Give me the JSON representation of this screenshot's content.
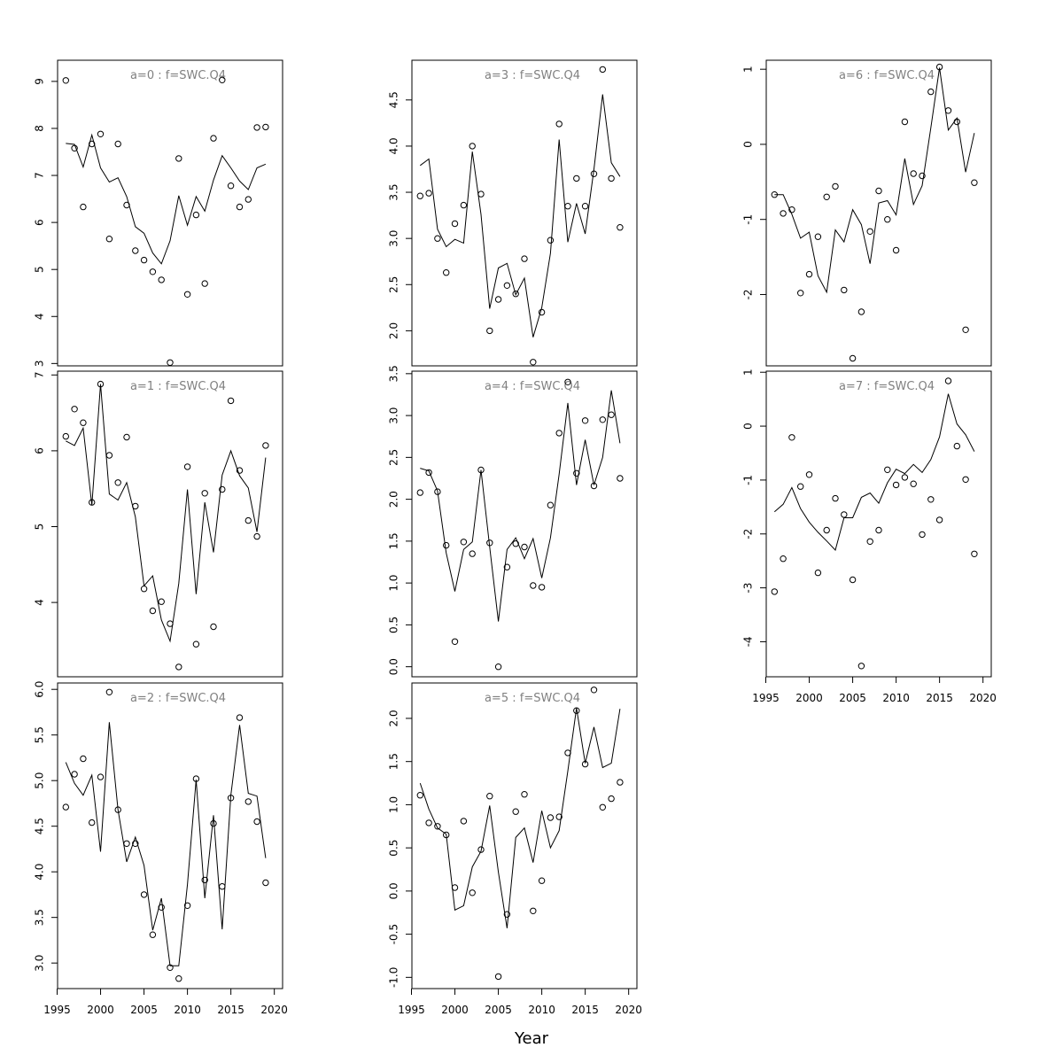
{
  "figure": {
    "xlabel": "Year"
  },
  "chart_data": [
    {
      "type": "line",
      "title": "a=0 : f=SWC.Q4",
      "x": [
        1996,
        1997,
        1998,
        1999,
        2000,
        2001,
        2002,
        2003,
        2004,
        2005,
        2006,
        2007,
        2008,
        2009,
        2010,
        2011,
        2012,
        2013,
        2014,
        2015,
        2016,
        2017,
        2018,
        2019
      ],
      "observed": [
        9.02,
        7.58,
        6.33,
        7.67,
        7.88,
        5.65,
        7.67,
        6.37,
        5.4,
        5.2,
        4.95,
        4.78,
        3.02,
        7.36,
        4.47,
        6.16,
        4.7,
        7.79,
        9.03,
        6.78,
        6.33,
        6.49,
        8.02,
        8.03
      ],
      "fitted": [
        7.68,
        7.66,
        7.18,
        7.86,
        7.16,
        6.86,
        6.95,
        6.55,
        5.91,
        5.77,
        5.35,
        5.12,
        5.61,
        6.57,
        5.94,
        6.55,
        6.24,
        6.9,
        7.42,
        7.16,
        6.88,
        6.7,
        7.16,
        7.24
      ],
      "ylim": [
        2.95,
        9.45
      ],
      "yticks": [
        3,
        4,
        5,
        6,
        7,
        8,
        9
      ],
      "ytick_labels": [
        "3",
        "4",
        "5",
        "6",
        "7",
        "8",
        "9"
      ],
      "xticks": [],
      "xtick_labels": []
    },
    {
      "type": "line",
      "title": "a=1 : f=SWC.Q4",
      "x": [
        1996,
        1997,
        1998,
        1999,
        2000,
        2001,
        2002,
        2003,
        2004,
        2005,
        2006,
        2007,
        2008,
        2009,
        2010,
        2011,
        2012,
        2013,
        2014,
        2015,
        2016,
        2017,
        2018,
        2019
      ],
      "observed": [
        6.19,
        6.55,
        6.37,
        5.32,
        6.88,
        5.94,
        5.58,
        6.18,
        5.27,
        4.18,
        3.89,
        4.01,
        3.72,
        3.15,
        5.79,
        3.45,
        5.44,
        3.68,
        5.49,
        6.66,
        5.74,
        5.08,
        4.87,
        6.07
      ],
      "fitted": [
        6.13,
        6.07,
        6.3,
        5.28,
        6.88,
        5.43,
        5.35,
        5.58,
        5.13,
        4.22,
        4.35,
        3.77,
        3.49,
        4.25,
        5.49,
        4.11,
        5.32,
        4.66,
        5.68,
        6.0,
        5.67,
        5.51,
        4.93,
        5.91
      ],
      "ylim": [
        3.02,
        7.05
      ],
      "yticks": [
        4,
        5,
        6,
        7
      ],
      "ytick_labels": [
        "4",
        "5",
        "6",
        "7"
      ],
      "xticks": [],
      "xtick_labels": []
    },
    {
      "type": "line",
      "title": "a=2 : f=SWC.Q4",
      "x": [
        1996,
        1997,
        1998,
        1999,
        2000,
        2001,
        2002,
        2003,
        2004,
        2005,
        2006,
        2007,
        2008,
        2009,
        2010,
        2011,
        2012,
        2013,
        2014,
        2015,
        2016,
        2017,
        2018,
        2019
      ],
      "observed": [
        4.71,
        5.07,
        5.24,
        4.54,
        5.04,
        5.97,
        4.68,
        4.31,
        4.31,
        3.75,
        3.31,
        3.61,
        2.95,
        2.83,
        3.63,
        5.02,
        3.91,
        4.53,
        3.84,
        4.81,
        5.69,
        4.77,
        4.55,
        3.88
      ],
      "fitted": [
        5.2,
        4.97,
        4.84,
        5.06,
        4.22,
        5.64,
        4.68,
        4.11,
        4.38,
        4.07,
        3.36,
        3.71,
        2.97,
        2.97,
        3.86,
        5.01,
        3.71,
        4.62,
        3.37,
        4.84,
        5.61,
        4.86,
        4.83,
        4.15
      ],
      "ylim": [
        2.72,
        6.07
      ],
      "yticks": [
        3.0,
        3.5,
        4.0,
        4.5,
        5.0,
        5.5,
        6.0
      ],
      "ytick_labels": [
        "3.0",
        "3.5",
        "4.0",
        "4.5",
        "5.0",
        "5.5",
        "6.0"
      ],
      "xticks": [
        1995,
        2000,
        2005,
        2010,
        2015,
        2020
      ],
      "xtick_labels": [
        "1995",
        "2000",
        "2005",
        "2010",
        "2015",
        "2020"
      ]
    },
    {
      "type": "line",
      "title": "a=3 : f=SWC.Q4",
      "x": [
        1996,
        1997,
        1998,
        1999,
        2000,
        2001,
        2002,
        2003,
        2004,
        2005,
        2006,
        2007,
        2008,
        2009,
        2010,
        2011,
        2012,
        2013,
        2014,
        2015,
        2016,
        2017,
        2018,
        2019
      ],
      "observed": [
        3.46,
        3.49,
        3.0,
        2.63,
        3.16,
        3.36,
        4.0,
        3.48,
        2.0,
        2.34,
        2.49,
        2.4,
        2.78,
        1.66,
        2.2,
        2.98,
        4.24,
        3.35,
        3.65,
        3.35,
        3.7,
        4.83,
        3.65,
        3.12
      ],
      "fitted": [
        3.79,
        3.86,
        3.1,
        2.91,
        2.99,
        2.95,
        3.94,
        3.26,
        2.24,
        2.68,
        2.73,
        2.39,
        2.57,
        1.93,
        2.25,
        2.84,
        4.07,
        2.96,
        3.38,
        3.05,
        3.75,
        4.56,
        3.82,
        3.67
      ],
      "ylim": [
        1.62,
        4.93
      ],
      "yticks": [
        2.0,
        2.5,
        3.0,
        3.5,
        4.0,
        4.5
      ],
      "ytick_labels": [
        "2.0",
        "2.5",
        "3.0",
        "3.5",
        "4.0",
        "4.5"
      ],
      "xticks": [],
      "xtick_labels": []
    },
    {
      "type": "line",
      "title": "a=4 : f=SWC.Q4",
      "x": [
        1996,
        1997,
        1998,
        1999,
        2000,
        2001,
        2002,
        2003,
        2004,
        2005,
        2006,
        2007,
        2008,
        2009,
        2010,
        2011,
        2012,
        2013,
        2014,
        2015,
        2016,
        2017,
        2018,
        2019
      ],
      "observed": [
        2.08,
        2.32,
        2.09,
        1.45,
        0.3,
        1.49,
        1.35,
        2.35,
        1.48,
        0.0,
        1.19,
        1.47,
        1.43,
        0.97,
        0.95,
        1.93,
        2.79,
        3.4,
        2.31,
        2.94,
        2.16,
        2.95,
        3.01,
        2.25
      ],
      "fitted": [
        2.37,
        2.34,
        2.1,
        1.36,
        0.9,
        1.4,
        1.49,
        2.35,
        1.43,
        0.54,
        1.4,
        1.54,
        1.29,
        1.53,
        1.06,
        1.54,
        2.3,
        3.15,
        2.17,
        2.71,
        2.17,
        2.5,
        3.3,
        2.67
      ],
      "ylim": [
        -0.12,
        3.53
      ],
      "yticks": [
        0.0,
        0.5,
        1.0,
        1.5,
        2.0,
        2.5,
        3.0,
        3.5
      ],
      "ytick_labels": [
        "0.0",
        "0.5",
        "1.0",
        "1.5",
        "2.0",
        "2.5",
        "3.0",
        "3.5"
      ],
      "xticks": [],
      "xtick_labels": []
    },
    {
      "type": "line",
      "title": "a=5 : f=SWC.Q4",
      "x": [
        1996,
        1997,
        1998,
        1999,
        2000,
        2001,
        2002,
        2003,
        2004,
        2005,
        2006,
        2007,
        2008,
        2009,
        2010,
        2011,
        2012,
        2013,
        2014,
        2015,
        2016,
        2017,
        2018,
        2019
      ],
      "observed": [
        1.11,
        0.79,
        0.75,
        0.65,
        0.04,
        0.81,
        -0.02,
        0.48,
        1.1,
        -0.99,
        -0.27,
        0.92,
        1.12,
        -0.23,
        0.12,
        0.85,
        0.86,
        1.6,
        2.09,
        1.47,
        2.33,
        0.97,
        1.07,
        1.26
      ],
      "fitted": [
        1.25,
        0.95,
        0.73,
        0.66,
        -0.22,
        -0.17,
        0.28,
        0.46,
        0.99,
        0.22,
        -0.43,
        0.62,
        0.73,
        0.33,
        0.93,
        0.5,
        0.7,
        1.39,
        2.12,
        1.48,
        1.9,
        1.43,
        1.48,
        2.11
      ],
      "ylim": [
        -1.13,
        2.41
      ],
      "yticks": [
        -1.0,
        -0.5,
        0.0,
        0.5,
        1.0,
        1.5,
        2.0
      ],
      "ytick_labels": [
        "-1.0",
        "-0.5",
        "0.0",
        "0.5",
        "1.0",
        "1.5",
        "2.0"
      ],
      "xticks": [
        1995,
        2000,
        2005,
        2010,
        2015,
        2020
      ],
      "xtick_labels": [
        "1995",
        "2000",
        "2005",
        "2010",
        "2015",
        "2020"
      ]
    },
    {
      "type": "line",
      "title": "a=6 : f=SWC.Q4",
      "x": [
        1996,
        1997,
        1998,
        1999,
        2000,
        2001,
        2002,
        2003,
        2004,
        2005,
        2006,
        2007,
        2008,
        2009,
        2010,
        2011,
        2012,
        2013,
        2014,
        2015,
        2016,
        2017,
        2018,
        2019
      ],
      "observed": [
        -0.67,
        -0.92,
        -0.87,
        -1.98,
        -1.73,
        -1.23,
        -0.7,
        -0.56,
        -1.94,
        -2.85,
        -2.23,
        -1.16,
        -0.62,
        -1.0,
        -1.41,
        0.3,
        -0.39,
        -0.42,
        0.7,
        1.03,
        0.45,
        0.3,
        -2.47,
        -0.51
      ],
      "fitted": [
        -0.67,
        -0.67,
        -0.93,
        -1.25,
        -1.17,
        -1.75,
        -1.97,
        -1.14,
        -1.3,
        -0.87,
        -1.07,
        -1.59,
        -0.78,
        -0.75,
        -0.94,
        -0.19,
        -0.8,
        -0.55,
        0.22,
        1.02,
        0.19,
        0.35,
        -0.37,
        0.15
      ],
      "ylim": [
        -2.95,
        1.12
      ],
      "yticks": [
        -2,
        -1,
        0,
        1
      ],
      "ytick_labels": [
        "-2",
        "-1",
        "0",
        "1"
      ],
      "xticks": [],
      "xtick_labels": []
    },
    {
      "type": "line",
      "title": "a=7 : f=SWC.Q4",
      "x": [
        1996,
        1997,
        1998,
        1999,
        2000,
        2001,
        2002,
        2003,
        2004,
        2005,
        2006,
        2007,
        2008,
        2009,
        2010,
        2011,
        2012,
        2013,
        2014,
        2015,
        2016,
        2017,
        2018,
        2019
      ],
      "observed": [
        -3.07,
        -2.46,
        -0.21,
        -1.12,
        -0.9,
        -2.72,
        -1.93,
        -1.34,
        -1.64,
        -2.85,
        -4.45,
        -2.14,
        -1.93,
        -0.81,
        -1.09,
        -0.95,
        -1.07,
        -2.01,
        -1.36,
        -1.74,
        0.84,
        -0.37,
        -0.99,
        -2.37
      ],
      "fitted": [
        -1.59,
        -1.45,
        -1.14,
        -1.53,
        -1.78,
        -1.97,
        -2.13,
        -2.3,
        -1.7,
        -1.7,
        -1.32,
        -1.24,
        -1.43,
        -1.05,
        -0.8,
        -0.88,
        -0.71,
        -0.86,
        -0.62,
        -0.2,
        0.6,
        0.04,
        -0.16,
        -0.47
      ],
      "ylim": [
        -4.65,
        1.02
      ],
      "yticks": [
        -4,
        -3,
        -2,
        -1,
        0,
        1
      ],
      "ytick_labels": [
        "-4",
        "-3",
        "-2",
        "-1",
        "0",
        "1"
      ],
      "xticks": [
        1995,
        2000,
        2005,
        2010,
        2015,
        2020
      ],
      "xtick_labels": [
        "1995",
        "2000",
        "2005",
        "2010",
        "2015",
        "2020"
      ]
    }
  ]
}
